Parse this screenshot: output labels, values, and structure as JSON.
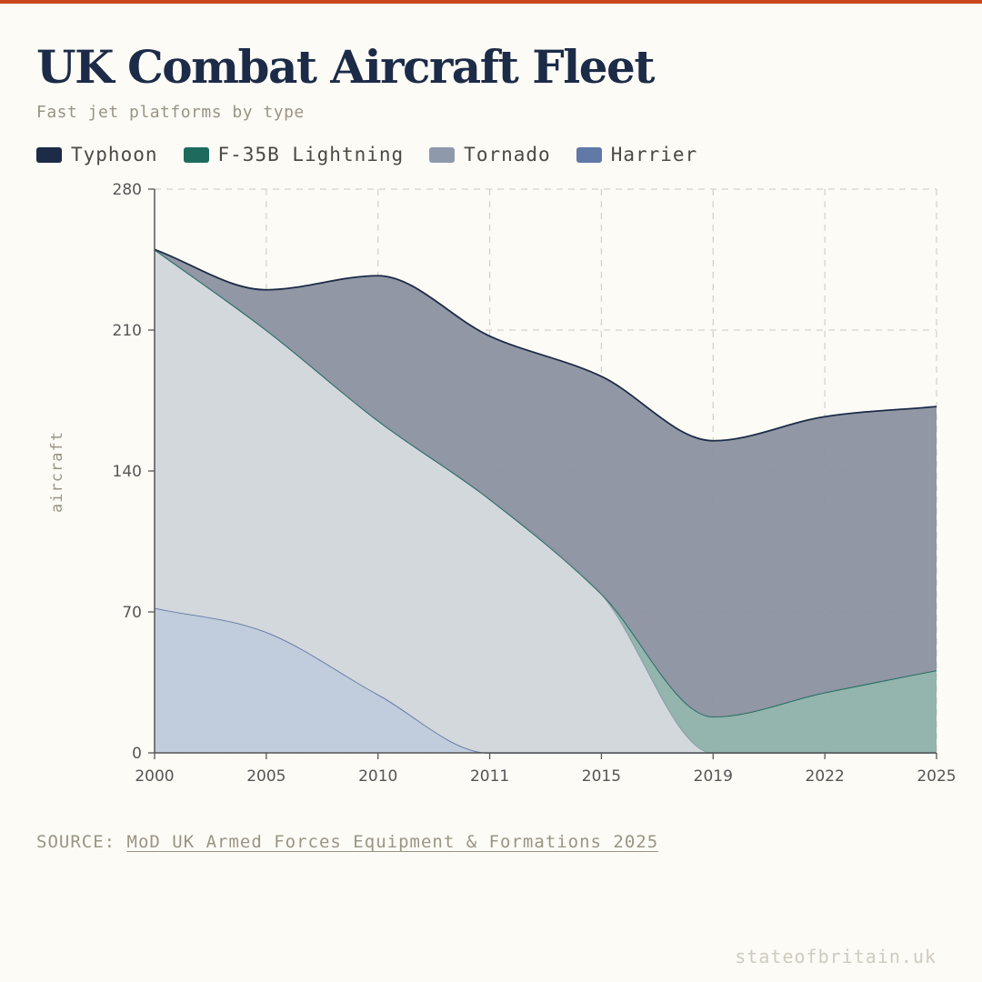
{
  "header": {
    "title": "UK Combat Aircraft Fleet",
    "subtitle": "Fast jet platforms by type"
  },
  "colors": {
    "accent": "#c9461d",
    "background": "#fcfbf6",
    "title": "#1c2b47"
  },
  "chart_data": {
    "type": "area",
    "stacked": true,
    "title": "UK Combat Aircraft Fleet",
    "subtitle": "Fast jet platforms by type",
    "xlabel": "",
    "ylabel": "aircraft",
    "categories": [
      "2000",
      "2005",
      "2010",
      "2011",
      "2015",
      "2019",
      "2022",
      "2025"
    ],
    "ylim": [
      0,
      280
    ],
    "yticks": [
      0,
      70,
      140,
      210,
      280
    ],
    "grid": true,
    "legend_position": "top-left",
    "series": [
      {
        "name": "Harrier",
        "color": "#6079a6",
        "fill": "#bfcbdb",
        "values": [
          72,
          60,
          29,
          0,
          0,
          0,
          0,
          0
        ]
      },
      {
        "name": "Tornado",
        "color": "#8e9aab",
        "fill": "#d2d7dc",
        "values": [
          178,
          150,
          136,
          126,
          79,
          0,
          0,
          0
        ]
      },
      {
        "name": "F-35B Lightning",
        "color": "#1e6b5e",
        "fill": "#8fb3aa",
        "values": [
          0,
          0,
          0,
          0,
          0,
          18,
          30,
          41
        ]
      },
      {
        "name": "Typhoon",
        "color": "#1c2b47",
        "fill": "#8d94a1",
        "values": [
          0,
          20,
          72,
          81,
          108,
          137,
          137,
          131
        ]
      }
    ],
    "legend_order": [
      "Typhoon",
      "F-35B Lightning",
      "Tornado",
      "Harrier"
    ]
  },
  "source": {
    "prefix": "SOURCE:",
    "link_text": "MoD UK Armed Forces Equipment & Formations 2025"
  },
  "footer": {
    "brand": "stateofbritain.uk"
  }
}
